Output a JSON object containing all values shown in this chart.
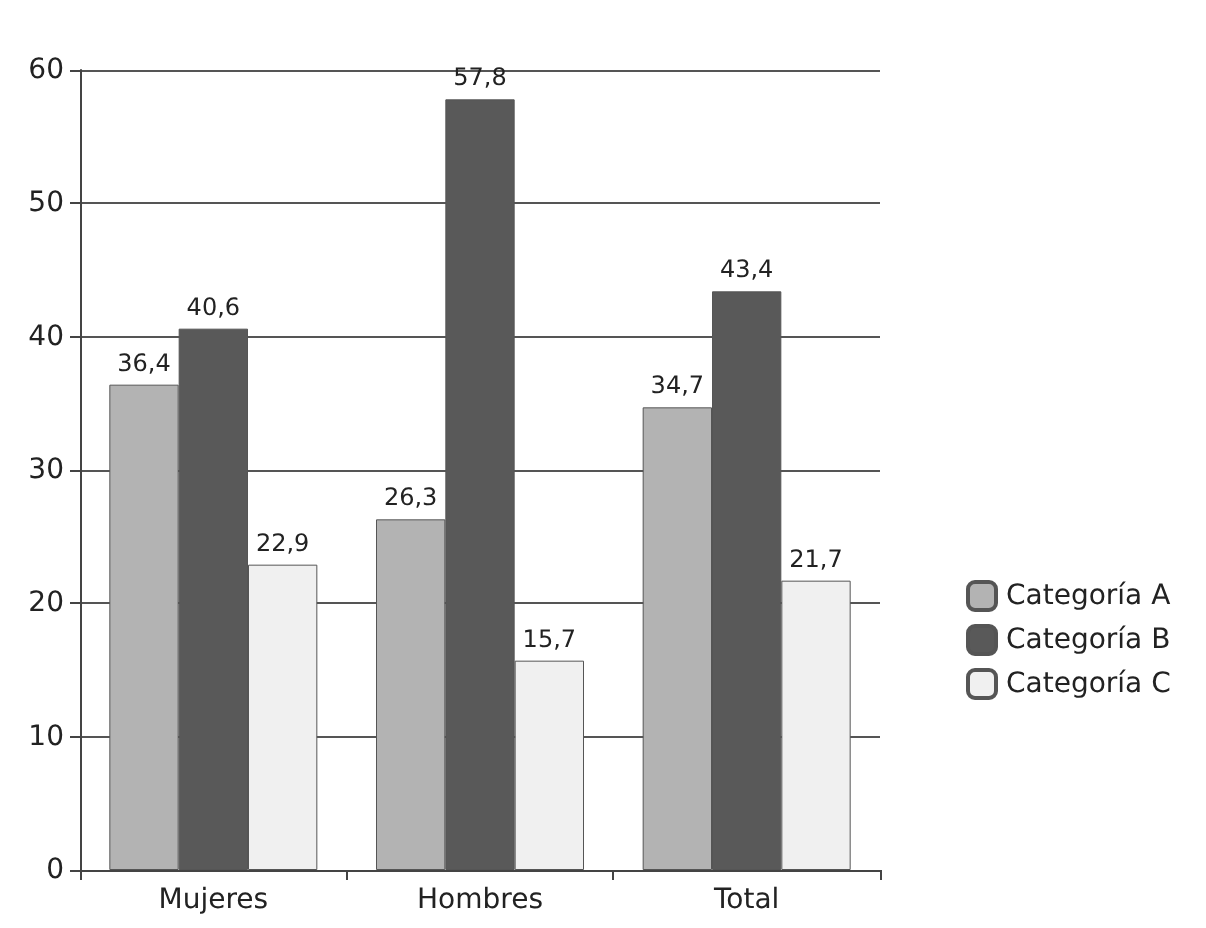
{
  "chart_data": {
    "type": "bar",
    "categories": [
      "Mujeres",
      "Hombres",
      "Total"
    ],
    "series": [
      {
        "name": "Categoría A",
        "color": "#b3b3b3",
        "values": [
          36.4,
          26.3,
          34.7
        ],
        "value_labels": [
          "36,4",
          "26,3",
          "34,7"
        ]
      },
      {
        "name": "Categoría B",
        "color": "#595959",
        "values": [
          40.6,
          57.8,
          43.4
        ],
        "value_labels": [
          "40,6",
          "57,8",
          "43,4"
        ]
      },
      {
        "name": "Categoría C",
        "color": "#f0f0f0",
        "values": [
          22.9,
          15.7,
          21.7
        ],
        "value_labels": [
          "22,9",
          "15,7",
          "21,7"
        ]
      }
    ],
    "ylim": [
      0,
      60
    ],
    "yticks": [
      0,
      10,
      20,
      30,
      40,
      50,
      60
    ],
    "grid": "y",
    "legend": "right"
  }
}
